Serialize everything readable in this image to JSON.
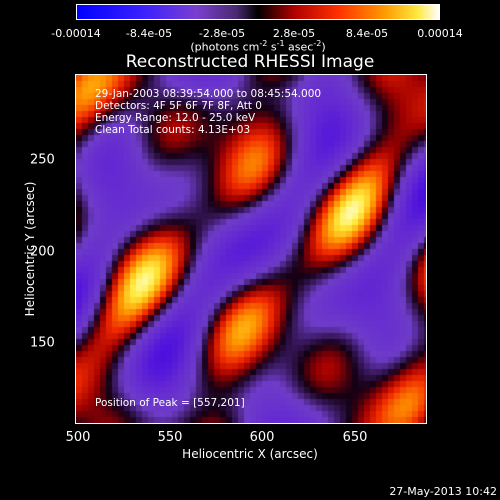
{
  "colorbar": {
    "ticks": [
      "-0.00014",
      "-8.4e-05",
      "-2.8e-05",
      "2.8e-05",
      "8.4e-05",
      "0.00014"
    ],
    "units_prefix": "(photons cm",
    "units_exp1": "-2",
    "units_mid1": " s",
    "units_exp2": "-1",
    "units_mid2": " asec",
    "units_exp3": "-2",
    "units_suffix": ")"
  },
  "title": "Reconstructed RHESSI Image",
  "info": {
    "time": "29-Jan-2003 08:39:54.000 to 08:45:54.000",
    "detectors": "Detectors: 4F 5F 6F 7F 8F, Att 0",
    "energy": "Energy Range: 12.0 - 25.0 keV",
    "algorithm": "Clean     Total counts: 4.13E+03",
    "peak": "Position of Peak = [557,201]"
  },
  "axes": {
    "x_label": "Heliocentric X (arcsec)",
    "y_label": "Heliocentric Y (arcsec)",
    "x_range": [
      500,
      690
    ],
    "y_range": [
      103,
      295
    ],
    "x_ticks": [
      "500",
      "550",
      "600",
      "650"
    ],
    "y_ticks": [
      "250",
      "200",
      "150"
    ]
  },
  "timestamp": "27-May-2013 10:42"
}
